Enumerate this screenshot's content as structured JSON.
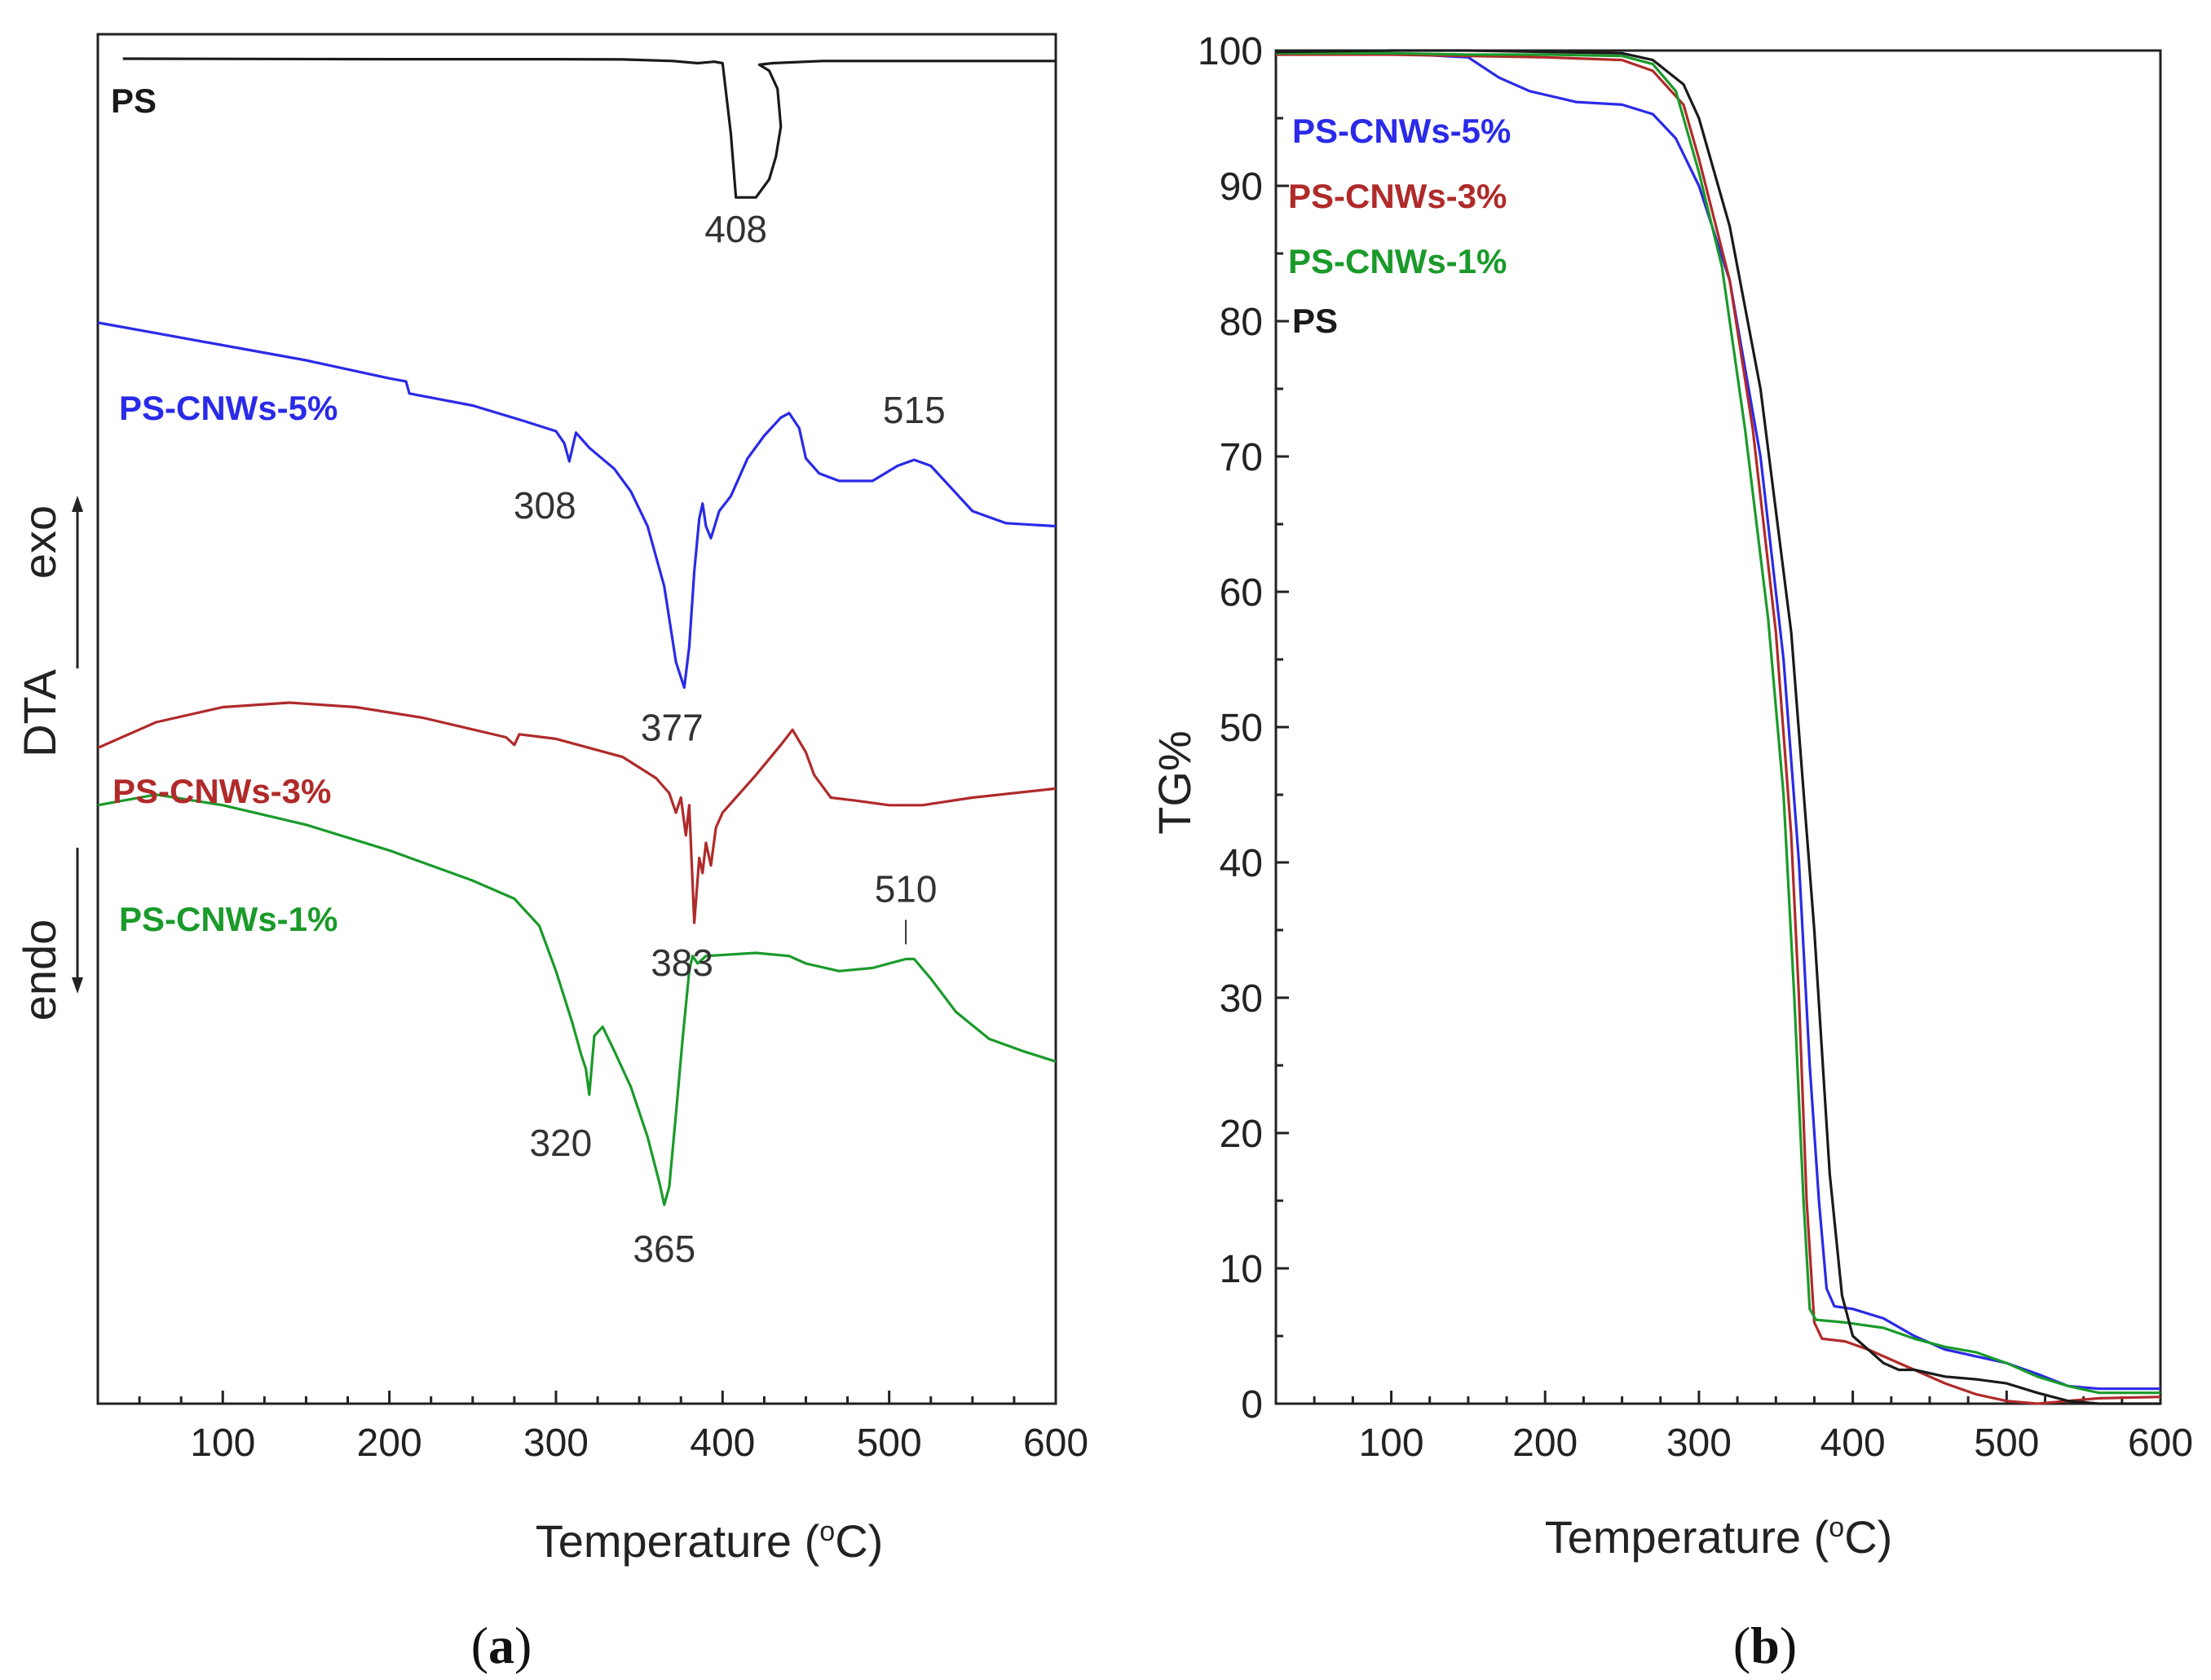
{
  "colors": {
    "PS": "#1a1a1a",
    "PS-CNWs-5%": "#2a2ae8",
    "PS-CNWs-3%": "#b02a2a",
    "PS-CNWs-1%": "#1a9a2a"
  },
  "chart_data": [
    {
      "panel": "a",
      "type": "line",
      "xlabel": "Temperature (°C)",
      "ylabel": "DTA",
      "ylabel_exo": "exo",
      "ylabel_endo": "endo",
      "xlim": [
        25,
        600
      ],
      "xticks": [
        "100",
        "200",
        "300",
        "400",
        "500",
        "600"
      ],
      "y_scale": "arbitrary (stacked curves, offset units)",
      "legend": [
        "PS",
        "PS-CNWs-5%",
        "PS-CNWs-3%",
        "PS-CNWs-1%"
      ],
      "series": [
        {
          "name": "PS",
          "points": [
            [
              40,
              0
            ],
            [
              200,
              -0.3
            ],
            [
              300,
              -0.3
            ],
            [
              340,
              -0.5
            ],
            [
              370,
              -1.5
            ],
            [
              385,
              -3
            ],
            [
              395,
              -2
            ],
            [
              400,
              -3
            ],
            [
              405,
              -50
            ],
            [
              408,
              -92
            ],
            [
              412,
              -92
            ],
            [
              420,
              -92
            ],
            [
              428,
              -80
            ],
            [
              432,
              -65
            ],
            [
              435,
              -45
            ],
            [
              433,
              -20
            ],
            [
              428,
              -8
            ],
            [
              422,
              -4
            ],
            [
              430,
              -3
            ],
            [
              460,
              -1.5
            ],
            [
              500,
              -1.5
            ],
            [
              550,
              -1.5
            ],
            [
              600,
              -1.5
            ]
          ]
        },
        {
          "name": "PS-CNWs-5%",
          "points": [
            [
              25,
              -175
            ],
            [
              60,
              -182
            ],
            [
              100,
              -190
            ],
            [
              150,
              -200
            ],
            [
              200,
              -212
            ],
            [
              210,
              -214
            ],
            [
              212,
              -222
            ],
            [
              250,
              -230
            ],
            [
              280,
              -240
            ],
            [
              300,
              -247
            ],
            [
              305,
              -255
            ],
            [
              308,
              -267
            ],
            [
              312,
              -248
            ],
            [
              320,
              -258
            ],
            [
              335,
              -272
            ],
            [
              345,
              -287
            ],
            [
              355,
              -310
            ],
            [
              365,
              -350
            ],
            [
              372,
              -400
            ],
            [
              377,
              -417
            ],
            [
              380,
              -390
            ],
            [
              383,
              -340
            ],
            [
              386,
              -305
            ],
            [
              388,
              -295
            ],
            [
              390,
              -310
            ],
            [
              393,
              -318
            ],
            [
              398,
              -300
            ],
            [
              405,
              -290
            ],
            [
              415,
              -265
            ],
            [
              425,
              -250
            ],
            [
              435,
              -238
            ],
            [
              440,
              -235
            ],
            [
              446,
              -245
            ],
            [
              450,
              -265
            ],
            [
              458,
              -275
            ],
            [
              470,
              -280
            ],
            [
              490,
              -280
            ],
            [
              505,
              -270
            ],
            [
              515,
              -266
            ],
            [
              525,
              -270
            ],
            [
              535,
              -282
            ],
            [
              550,
              -300
            ],
            [
              570,
              -308
            ],
            [
              600,
              -310
            ]
          ]
        },
        {
          "name": "PS-CNWs-3%",
          "points": [
            [
              25,
              -457
            ],
            [
              60,
              -440
            ],
            [
              100,
              -430
            ],
            [
              140,
              -427
            ],
            [
              180,
              -430
            ],
            [
              220,
              -437
            ],
            [
              270,
              -450
            ],
            [
              275,
              -455
            ],
            [
              278,
              -448
            ],
            [
              300,
              -451
            ],
            [
              340,
              -463
            ],
            [
              360,
              -477
            ],
            [
              368,
              -487
            ],
            [
              372,
              -500
            ],
            [
              375,
              -490
            ],
            [
              378,
              -515
            ],
            [
              380,
              -495
            ],
            [
              383,
              -573
            ],
            [
              386,
              -530
            ],
            [
              388,
              -540
            ],
            [
              390,
              -520
            ],
            [
              393,
              -535
            ],
            [
              396,
              -510
            ],
            [
              400,
              -500
            ],
            [
              420,
              -475
            ],
            [
              435,
              -455
            ],
            [
              442,
              -445
            ],
            [
              450,
              -460
            ],
            [
              455,
              -475
            ],
            [
              465,
              -490
            ],
            [
              480,
              -492
            ],
            [
              500,
              -495
            ],
            [
              520,
              -495
            ],
            [
              550,
              -490
            ],
            [
              600,
              -484
            ]
          ]
        },
        {
          "name": "PS-CNWs-1%",
          "points": [
            [
              25,
              -495
            ],
            [
              60,
              -488
            ],
            [
              100,
              -495
            ],
            [
              150,
              -508
            ],
            [
              200,
              -525
            ],
            [
              250,
              -545
            ],
            [
              275,
              -557
            ],
            [
              290,
              -575
            ],
            [
              300,
              -605
            ],
            [
              310,
              -640
            ],
            [
              315,
              -660
            ],
            [
              318,
              -670
            ],
            [
              320,
              -687
            ],
            [
              323,
              -648
            ],
            [
              328,
              -642
            ],
            [
              335,
              -658
            ],
            [
              345,
              -682
            ],
            [
              355,
              -715
            ],
            [
              362,
              -745
            ],
            [
              365,
              -760
            ],
            [
              368,
              -748
            ],
            [
              372,
              -700
            ],
            [
              376,
              -650
            ],
            [
              380,
              -605
            ],
            [
              382,
              -595
            ],
            [
              385,
              -600
            ],
            [
              390,
              -595
            ],
            [
              420,
              -593
            ],
            [
              440,
              -595
            ],
            [
              450,
              -600
            ],
            [
              470,
              -605
            ],
            [
              490,
              -603
            ],
            [
              510,
              -597
            ],
            [
              515,
              -597
            ],
            [
              525,
              -610
            ],
            [
              540,
              -632
            ],
            [
              560,
              -650
            ],
            [
              580,
              -658
            ],
            [
              600,
              -665
            ]
          ]
        }
      ],
      "annotations": [
        {
          "text": "408",
          "x": 408,
          "series": "PS"
        },
        {
          "text": "308",
          "x": 308,
          "series": "PS-CNWs-5%"
        },
        {
          "text": "515",
          "x": 515,
          "series": "PS-CNWs-5%"
        },
        {
          "text": "377",
          "x": 377,
          "series": "PS-CNWs-5%"
        },
        {
          "text": "383",
          "x": 383,
          "series": "PS-CNWs-3%"
        },
        {
          "text": "510",
          "x": 510,
          "series": "PS-CNWs-1%"
        },
        {
          "text": "320",
          "x": 320,
          "series": "PS-CNWs-1%"
        },
        {
          "text": "365",
          "x": 365,
          "series": "PS-CNWs-1%"
        }
      ]
    },
    {
      "panel": "b",
      "type": "line",
      "xlabel": "Temperature (°C)",
      "ylabel": "TG%",
      "xlim": [
        25,
        600
      ],
      "ylim": [
        0,
        100
      ],
      "xticks": [
        "100",
        "200",
        "300",
        "400",
        "500",
        "600"
      ],
      "yticks": [
        "0",
        "10",
        "20",
        "30",
        "40",
        "50",
        "60",
        "70",
        "80",
        "90",
        "100"
      ],
      "legend": [
        "PS-CNWs-5%",
        "PS-CNWs-3%",
        "PS-CNWs-1%",
        "PS"
      ],
      "series": [
        {
          "name": "PS-CNWs-5%",
          "points": [
            [
              25,
              99.8
            ],
            [
              100,
              99.8
            ],
            [
              150,
              99.5
            ],
            [
              170,
              98
            ],
            [
              190,
              97
            ],
            [
              220,
              96.2
            ],
            [
              250,
              96
            ],
            [
              270,
              95.3
            ],
            [
              285,
              93.5
            ],
            [
              300,
              90
            ],
            [
              320,
              83
            ],
            [
              340,
              70
            ],
            [
              355,
              55
            ],
            [
              365,
              40
            ],
            [
              372,
              25
            ],
            [
              378,
              15
            ],
            [
              383,
              8.5
            ],
            [
              388,
              7.2
            ],
            [
              400,
              7
            ],
            [
              420,
              6.3
            ],
            [
              440,
              5
            ],
            [
              460,
              4
            ],
            [
              480,
              3.5
            ],
            [
              500,
              3
            ],
            [
              520,
              2.2
            ],
            [
              540,
              1.3
            ],
            [
              560,
              1.1
            ],
            [
              600,
              1.1
            ]
          ]
        },
        {
          "name": "PS-CNWs-3%",
          "points": [
            [
              25,
              99.7
            ],
            [
              100,
              99.7
            ],
            [
              150,
              99.6
            ],
            [
              200,
              99.5
            ],
            [
              250,
              99.3
            ],
            [
              270,
              98.5
            ],
            [
              290,
              96
            ],
            [
              300,
              92
            ],
            [
              320,
              83
            ],
            [
              335,
              72
            ],
            [
              350,
              57
            ],
            [
              360,
              42
            ],
            [
              365,
              30
            ],
            [
              370,
              15
            ],
            [
              375,
              6
            ],
            [
              380,
              4.8
            ],
            [
              395,
              4.6
            ],
            [
              410,
              4
            ],
            [
              420,
              3.5
            ],
            [
              440,
              2.5
            ],
            [
              460,
              1.5
            ],
            [
              480,
              0.7
            ],
            [
              500,
              0.2
            ],
            [
              520,
              0
            ],
            [
              560,
              0.4
            ],
            [
              600,
              0.5
            ]
          ]
        },
        {
          "name": "PS-CNWs-1%",
          "points": [
            [
              25,
              99.8
            ],
            [
              100,
              99.8
            ],
            [
              150,
              99.7
            ],
            [
              200,
              99.7
            ],
            [
              250,
              99.6
            ],
            [
              270,
              99
            ],
            [
              285,
              97
            ],
            [
              300,
              91
            ],
            [
              315,
              84
            ],
            [
              330,
              72
            ],
            [
              345,
              58
            ],
            [
              355,
              45
            ],
            [
              362,
              30
            ],
            [
              368,
              15
            ],
            [
              372,
              7
            ],
            [
              376,
              6.2
            ],
            [
              395,
              6
            ],
            [
              420,
              5.6
            ],
            [
              440,
              4.8
            ],
            [
              460,
              4.2
            ],
            [
              480,
              3.8
            ],
            [
              500,
              3
            ],
            [
              520,
              2
            ],
            [
              540,
              1.3
            ],
            [
              560,
              0.8
            ],
            [
              580,
              0.8
            ],
            [
              600,
              0.8
            ]
          ]
        },
        {
          "name": "PS",
          "points": [
            [
              25,
              99.9
            ],
            [
              100,
              100
            ],
            [
              150,
              100
            ],
            [
              200,
              99.9
            ],
            [
              250,
              99.8
            ],
            [
              270,
              99.3
            ],
            [
              290,
              97.5
            ],
            [
              300,
              95
            ],
            [
              320,
              87
            ],
            [
              340,
              75
            ],
            [
              360,
              57
            ],
            [
              375,
              35
            ],
            [
              385,
              17
            ],
            [
              393,
              8
            ],
            [
              400,
              5
            ],
            [
              410,
              4
            ],
            [
              415,
              3.5
            ],
            [
              420,
              3
            ],
            [
              430,
              2.5
            ],
            [
              440,
              2.5
            ],
            [
              460,
              2
            ],
            [
              480,
              1.8
            ],
            [
              500,
              1.5
            ],
            [
              520,
              0.8
            ],
            [
              540,
              0.2
            ],
            [
              560,
              0
            ],
            [
              600,
              0
            ]
          ]
        }
      ]
    }
  ],
  "panel_labels": {
    "a": {
      "open": "(",
      "letter": "a",
      "close": ")"
    },
    "b": {
      "open": "(",
      "letter": "b",
      "close": ")"
    }
  },
  "degree_symbol": "o",
  "xlabel_prefix": "Temperature (",
  "xlabel_suffix": "C)"
}
